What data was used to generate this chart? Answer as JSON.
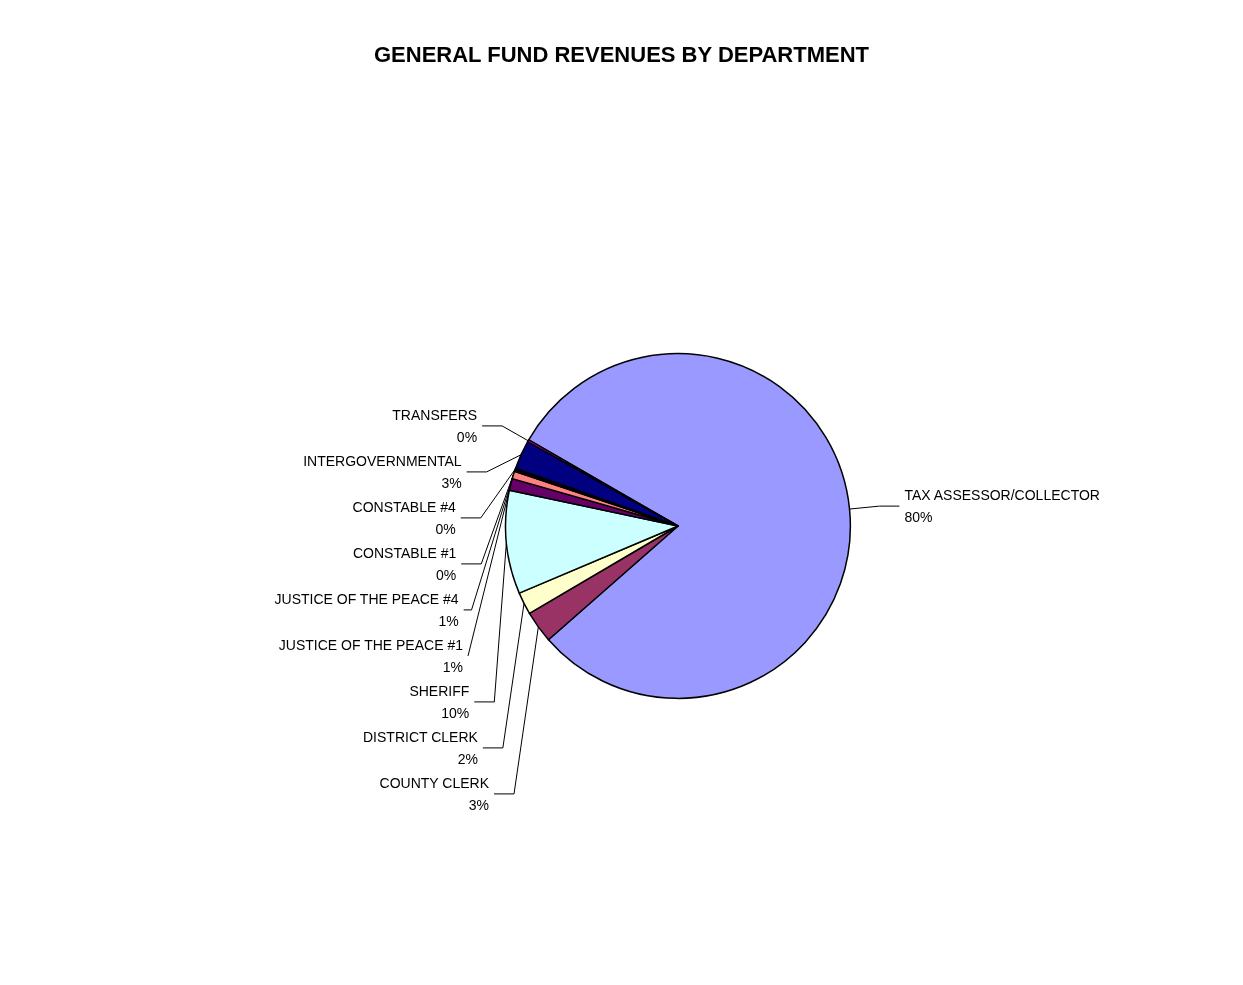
{
  "chart_data": {
    "type": "pie",
    "title": "GENERAL FUND REVENUES BY DEPARTMENT",
    "categories": [
      "TAX ASSESSOR/COLLECTOR",
      "COUNTY CLERK",
      "DISTRICT CLERK",
      "SHERIFF",
      "JUSTICE OF THE PEACE #1",
      "JUSTICE OF THE PEACE #4",
      "CONSTABLE #1",
      "CONSTABLE #4",
      "INTERGOVERNMENTAL",
      "TRANSFERS"
    ],
    "values": [
      80.2,
      3.0,
      2.1,
      9.7,
      1.1,
      0.7,
      0.15,
      0.15,
      2.7,
      0.2
    ],
    "value_labels": [
      "80%",
      "3%",
      "2%",
      "10%",
      "1%",
      "1%",
      "0%",
      "0%",
      "3%",
      "0%"
    ],
    "colors": [
      "#9999ff",
      "#993366",
      "#ffffcc",
      "#ccffff",
      "#660066",
      "#ff8080",
      "#0066cc",
      "#ccccff",
      "#000080",
      "#ff00ff"
    ],
    "legend": false
  }
}
